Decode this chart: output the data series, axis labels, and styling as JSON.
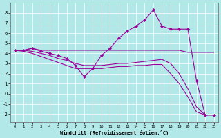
{
  "background_color": "#b3e8e8",
  "grid_color": "#ffffff",
  "line_color": "#990099",
  "xlabel": "Windchill (Refroidissement éolien,°C)",
  "xlim": [
    -0.5,
    23.5
  ],
  "ylim": [
    -2.8,
    9.0
  ],
  "yticks": [
    -2,
    -1,
    0,
    1,
    2,
    3,
    4,
    5,
    6,
    7,
    8
  ],
  "xticks": [
    0,
    1,
    2,
    3,
    4,
    5,
    6,
    7,
    8,
    9,
    10,
    11,
    12,
    13,
    14,
    15,
    16,
    17,
    18,
    19,
    20,
    21,
    22,
    23
  ],
  "series": [
    {
      "x": [
        0,
        1,
        2,
        3,
        4,
        5,
        6,
        7,
        8,
        9,
        10,
        11,
        12,
        13,
        14,
        15,
        16,
        17,
        18,
        19,
        20,
        21,
        22,
        23
      ],
      "y": [
        4.3,
        4.3,
        4.5,
        4.3,
        4.3,
        4.3,
        4.3,
        4.3,
        4.3,
        4.3,
        4.3,
        4.3,
        4.3,
        4.3,
        4.3,
        4.3,
        4.3,
        4.3,
        4.3,
        4.3,
        4.1,
        4.1,
        4.1,
        4.1
      ],
      "marker": null,
      "lw": 0.8
    },
    {
      "x": [
        0,
        1,
        2,
        3,
        4,
        5,
        6,
        7,
        8,
        9,
        10,
        11,
        12,
        13,
        14,
        15,
        16,
        17,
        18,
        19,
        20,
        21,
        22,
        23
      ],
      "y": [
        4.3,
        4.3,
        4.5,
        4.2,
        4.0,
        3.8,
        3.5,
        2.8,
        1.7,
        2.5,
        3.8,
        4.5,
        5.5,
        6.2,
        6.7,
        7.3,
        8.3,
        6.7,
        6.4,
        6.4,
        6.4,
        1.3,
        -2.1,
        -2.1
      ],
      "marker": "D",
      "lw": 0.8
    },
    {
      "x": [
        0,
        1,
        2,
        3,
        4,
        5,
        6,
        7,
        8,
        9,
        10,
        11,
        12,
        13,
        14,
        15,
        16,
        17,
        18,
        19,
        20,
        21,
        22,
        23
      ],
      "y": [
        4.3,
        4.3,
        4.2,
        4.0,
        3.8,
        3.5,
        3.3,
        3.0,
        2.8,
        2.8,
        2.8,
        2.9,
        3.0,
        3.0,
        3.1,
        3.2,
        3.3,
        3.4,
        3.0,
        2.0,
        0.5,
        -1.3,
        -2.1,
        -2.1
      ],
      "marker": null,
      "lw": 0.8
    },
    {
      "x": [
        0,
        1,
        2,
        3,
        4,
        5,
        6,
        7,
        8,
        9,
        10,
        11,
        12,
        13,
        14,
        15,
        16,
        17,
        18,
        19,
        20,
        21,
        22,
        23
      ],
      "y": [
        4.3,
        4.2,
        4.0,
        3.7,
        3.4,
        3.1,
        2.8,
        2.5,
        2.5,
        2.5,
        2.5,
        2.6,
        2.7,
        2.7,
        2.8,
        2.8,
        2.9,
        2.9,
        2.0,
        1.0,
        -0.3,
        -1.8,
        -2.1,
        -2.1
      ],
      "marker": null,
      "lw": 0.8
    }
  ]
}
